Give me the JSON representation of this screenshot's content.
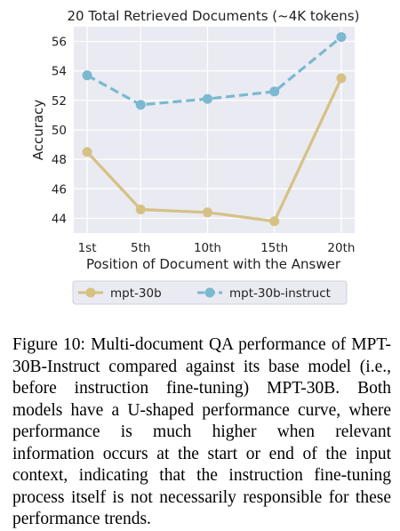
{
  "chart_data": {
    "type": "line",
    "title": "20 Total Retrieved Documents (~4K tokens)",
    "xlabel": "Position of Document with the Answer",
    "ylabel": "Accuracy",
    "categories": [
      "1st",
      "5th",
      "10th",
      "15th",
      "20th"
    ],
    "x": [
      1,
      5,
      10,
      15,
      20
    ],
    "ylim": [
      43,
      57
    ],
    "yticks": [
      44,
      46,
      48,
      50,
      52,
      54,
      56
    ],
    "grid": true,
    "legend_position": "below",
    "series": [
      {
        "name": "mpt-30b",
        "values": [
          48.5,
          44.6,
          44.4,
          43.8,
          53.5
        ],
        "color": "#d6c184",
        "style": "solid"
      },
      {
        "name": "mpt-30b-instruct",
        "values": [
          53.7,
          51.7,
          52.1,
          52.6,
          56.3
        ],
        "color": "#7ab9d0",
        "style": "dashed"
      }
    ]
  },
  "caption": "Figure 10: Multi-document QA performance of MPT-30B-Instruct compared against its base model (i.e., before instruction fine-tuning) MPT-30B. Both models have a U-shaped performance curve, where performance is much higher when relevant information occurs at the start or end of the input context, indicating that the instruction fine-tuning process itself is not necessarily responsible for these performance trends."
}
